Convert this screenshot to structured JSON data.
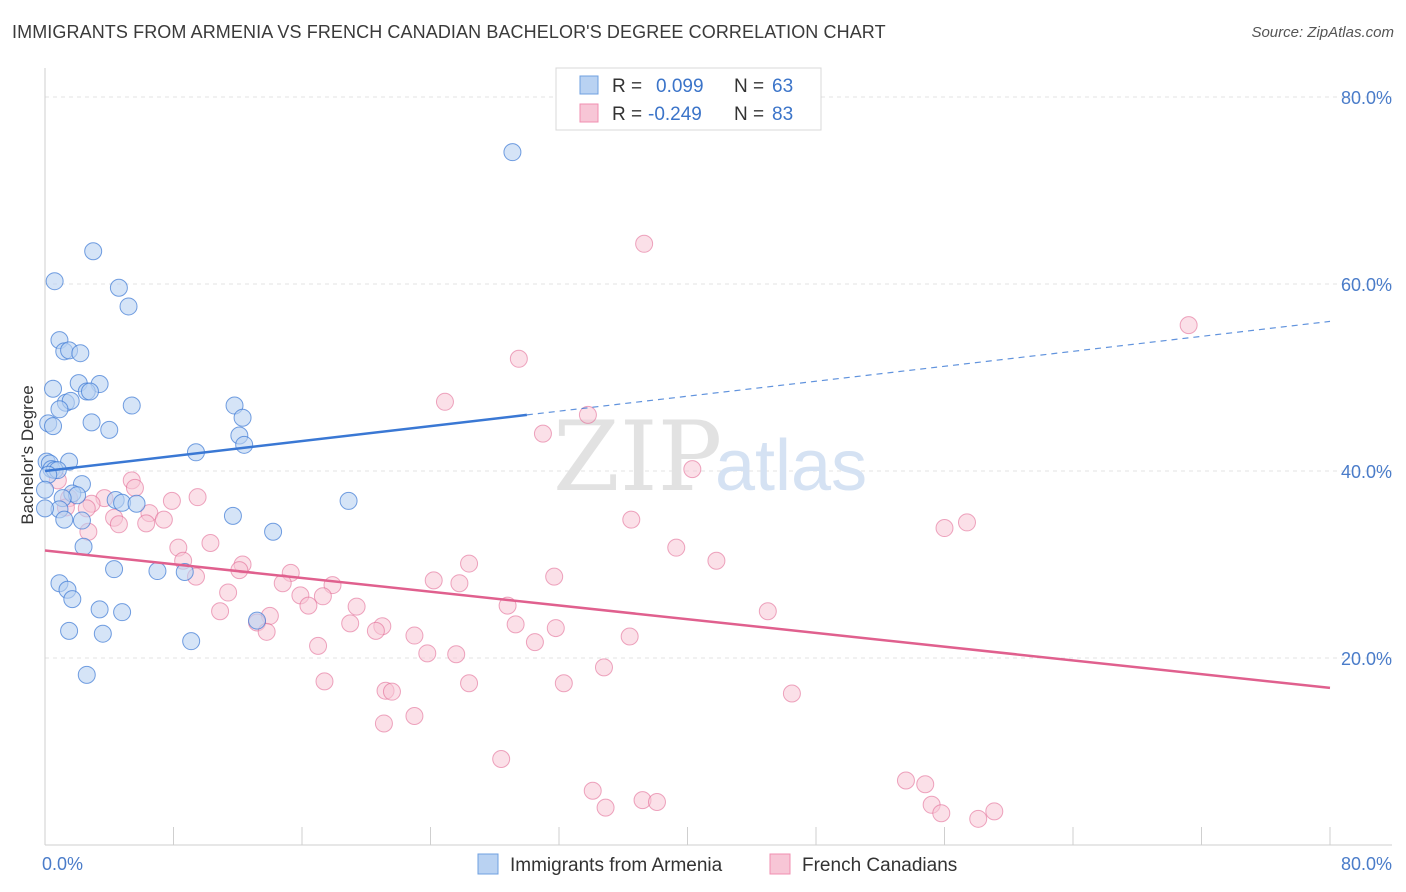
{
  "header": {
    "title": "IMMIGRANTS FROM ARMENIA VS FRENCH CANADIAN BACHELOR'S DEGREE CORRELATION CHART",
    "source": "Source: ZipAtlas.com"
  },
  "watermark": {
    "zip": "ZIP",
    "atlas": "atlas"
  },
  "legend": {
    "rows": [
      {
        "r_label": "R =",
        "r_value": "0.099",
        "n_label": "N =",
        "n_value": "63",
        "color": "#6fa0e0"
      },
      {
        "r_label": "R =",
        "r_value": "-0.249",
        "n_label": "N =",
        "n_value": "83",
        "color": "#f08fb0"
      }
    ]
  },
  "bottom_legend": {
    "items": [
      {
        "label": "Immigrants from Armenia",
        "color": "#6fa0e0"
      },
      {
        "label": "French Canadians",
        "color": "#f08fb0"
      }
    ]
  },
  "chart_data": {
    "type": "scatter",
    "title": "IMMIGRANTS FROM ARMENIA VS FRENCH CANADIAN BACHELOR'S DEGREE CORRELATION CHART",
    "xlabel": "",
    "ylabel": "Bachelor's Degree",
    "xlim": [
      0,
      80
    ],
    "ylim": [
      0,
      80
    ],
    "x_tick_labels": [
      "0.0%",
      "80.0%"
    ],
    "y_tick_labels": [
      "20.0%",
      "40.0%",
      "60.0%",
      "80.0%"
    ],
    "y_ticks": [
      20,
      40,
      60,
      80
    ],
    "grid": true,
    "colors": {
      "armenia": "#3a78d4",
      "armenia_fill": "#b9d2f2",
      "french": "#e0608e",
      "french_fill": "#f7c6d6"
    },
    "series": [
      {
        "name": "Immigrants from Armenia",
        "trend": {
          "x0": 0,
          "y0": 40.0,
          "x1": 30,
          "y1": 46.0,
          "dashed_to_x": 80,
          "dashed_to_y": 56.0
        },
        "points": [
          [
            29.1,
            74.1
          ],
          [
            3.0,
            63.5
          ],
          [
            0.6,
            60.3
          ],
          [
            4.6,
            59.6
          ],
          [
            5.2,
            57.6
          ],
          [
            0.9,
            54.0
          ],
          [
            1.2,
            52.8
          ],
          [
            1.5,
            52.9
          ],
          [
            2.2,
            52.6
          ],
          [
            2.1,
            49.4
          ],
          [
            3.4,
            49.3
          ],
          [
            0.5,
            48.8
          ],
          [
            2.6,
            48.5
          ],
          [
            2.8,
            48.5
          ],
          [
            1.3,
            47.3
          ],
          [
            1.6,
            47.5
          ],
          [
            5.4,
            47.0
          ],
          [
            11.8,
            47.0
          ],
          [
            0.9,
            46.6
          ],
          [
            12.3,
            45.7
          ],
          [
            0.2,
            45.1
          ],
          [
            0.5,
            44.8
          ],
          [
            2.9,
            45.2
          ],
          [
            4.0,
            44.4
          ],
          [
            12.1,
            43.8
          ],
          [
            12.4,
            42.8
          ],
          [
            9.4,
            42.0
          ],
          [
            0.1,
            41.0
          ],
          [
            0.3,
            40.8
          ],
          [
            1.5,
            41.0
          ],
          [
            0.4,
            40.2
          ],
          [
            0.6,
            40.1
          ],
          [
            0.8,
            40.1
          ],
          [
            0.2,
            39.6
          ],
          [
            2.3,
            38.6
          ],
          [
            1.7,
            37.6
          ],
          [
            2.0,
            37.4
          ],
          [
            1.1,
            37.1
          ],
          [
            4.4,
            36.9
          ],
          [
            4.8,
            36.6
          ],
          [
            5.7,
            36.5
          ],
          [
            0.9,
            35.9
          ],
          [
            18.9,
            36.8
          ],
          [
            1.2,
            34.8
          ],
          [
            2.3,
            34.7
          ],
          [
            11.7,
            35.2
          ],
          [
            14.2,
            33.5
          ],
          [
            2.4,
            31.9
          ],
          [
            4.3,
            29.5
          ],
          [
            7.0,
            29.3
          ],
          [
            8.7,
            29.2
          ],
          [
            0.9,
            28.0
          ],
          [
            1.4,
            27.3
          ],
          [
            1.7,
            26.3
          ],
          [
            3.4,
            25.2
          ],
          [
            4.8,
            24.9
          ],
          [
            13.2,
            24.0
          ],
          [
            1.5,
            22.9
          ],
          [
            3.6,
            22.6
          ],
          [
            9.1,
            21.8
          ],
          [
            2.6,
            18.2
          ],
          [
            0.0,
            36.0
          ],
          [
            0.0,
            38.0
          ]
        ]
      },
      {
        "name": "French Canadians",
        "trend": {
          "x0": 0,
          "y0": 31.5,
          "x1": 80,
          "y1": 16.8
        },
        "points": [
          [
            37.3,
            64.3
          ],
          [
            71.2,
            55.6
          ],
          [
            29.5,
            52.0
          ],
          [
            24.9,
            47.4
          ],
          [
            33.8,
            46.0
          ],
          [
            31.0,
            44.0
          ],
          [
            40.3,
            40.2
          ],
          [
            0.8,
            39.0
          ],
          [
            5.4,
            39.0
          ],
          [
            1.5,
            37.1
          ],
          [
            3.7,
            37.1
          ],
          [
            2.9,
            36.5
          ],
          [
            5.6,
            38.2
          ],
          [
            9.5,
            37.2
          ],
          [
            7.9,
            36.8
          ],
          [
            1.3,
            36.1
          ],
          [
            2.6,
            36.0
          ],
          [
            6.5,
            35.5
          ],
          [
            4.3,
            35.0
          ],
          [
            6.3,
            34.4
          ],
          [
            4.6,
            34.3
          ],
          [
            7.4,
            34.8
          ],
          [
            36.5,
            34.8
          ],
          [
            56.0,
            33.9
          ],
          [
            57.4,
            34.5
          ],
          [
            2.7,
            33.5
          ],
          [
            10.3,
            32.3
          ],
          [
            8.3,
            31.8
          ],
          [
            39.3,
            31.8
          ],
          [
            26.4,
            30.1
          ],
          [
            41.8,
            30.4
          ],
          [
            12.3,
            30.0
          ],
          [
            8.6,
            30.4
          ],
          [
            12.1,
            29.4
          ],
          [
            15.3,
            29.1
          ],
          [
            9.4,
            28.7
          ],
          [
            14.8,
            28.0
          ],
          [
            17.9,
            27.8
          ],
          [
            24.2,
            28.3
          ],
          [
            31.7,
            28.7
          ],
          [
            11.4,
            27.0
          ],
          [
            15.9,
            26.7
          ],
          [
            17.3,
            26.6
          ],
          [
            25.8,
            28.0
          ],
          [
            16.4,
            25.6
          ],
          [
            19.4,
            25.5
          ],
          [
            28.8,
            25.6
          ],
          [
            10.9,
            25.0
          ],
          [
            14.0,
            24.5
          ],
          [
            45.0,
            25.0
          ],
          [
            13.2,
            23.8
          ],
          [
            19.0,
            23.7
          ],
          [
            21.0,
            23.4
          ],
          [
            29.3,
            23.6
          ],
          [
            31.8,
            23.2
          ],
          [
            13.8,
            22.8
          ],
          [
            20.6,
            22.9
          ],
          [
            23.0,
            22.4
          ],
          [
            36.4,
            22.3
          ],
          [
            30.5,
            21.7
          ],
          [
            17.0,
            21.3
          ],
          [
            23.8,
            20.5
          ],
          [
            25.6,
            20.4
          ],
          [
            34.8,
            19.0
          ],
          [
            17.4,
            17.5
          ],
          [
            26.4,
            17.3
          ],
          [
            32.3,
            17.3
          ],
          [
            21.2,
            16.5
          ],
          [
            21.6,
            16.4
          ],
          [
            46.5,
            16.2
          ],
          [
            23.0,
            13.8
          ],
          [
            21.1,
            13.0
          ],
          [
            28.4,
            9.2
          ],
          [
            54.8,
            6.5
          ],
          [
            53.6,
            6.9
          ],
          [
            34.1,
            5.8
          ],
          [
            34.9,
            4.0
          ],
          [
            37.2,
            4.8
          ],
          [
            38.1,
            4.6
          ],
          [
            55.2,
            4.3
          ],
          [
            55.8,
            3.4
          ],
          [
            58.1,
            2.8
          ],
          [
            59.1,
            3.6
          ]
        ]
      }
    ]
  }
}
